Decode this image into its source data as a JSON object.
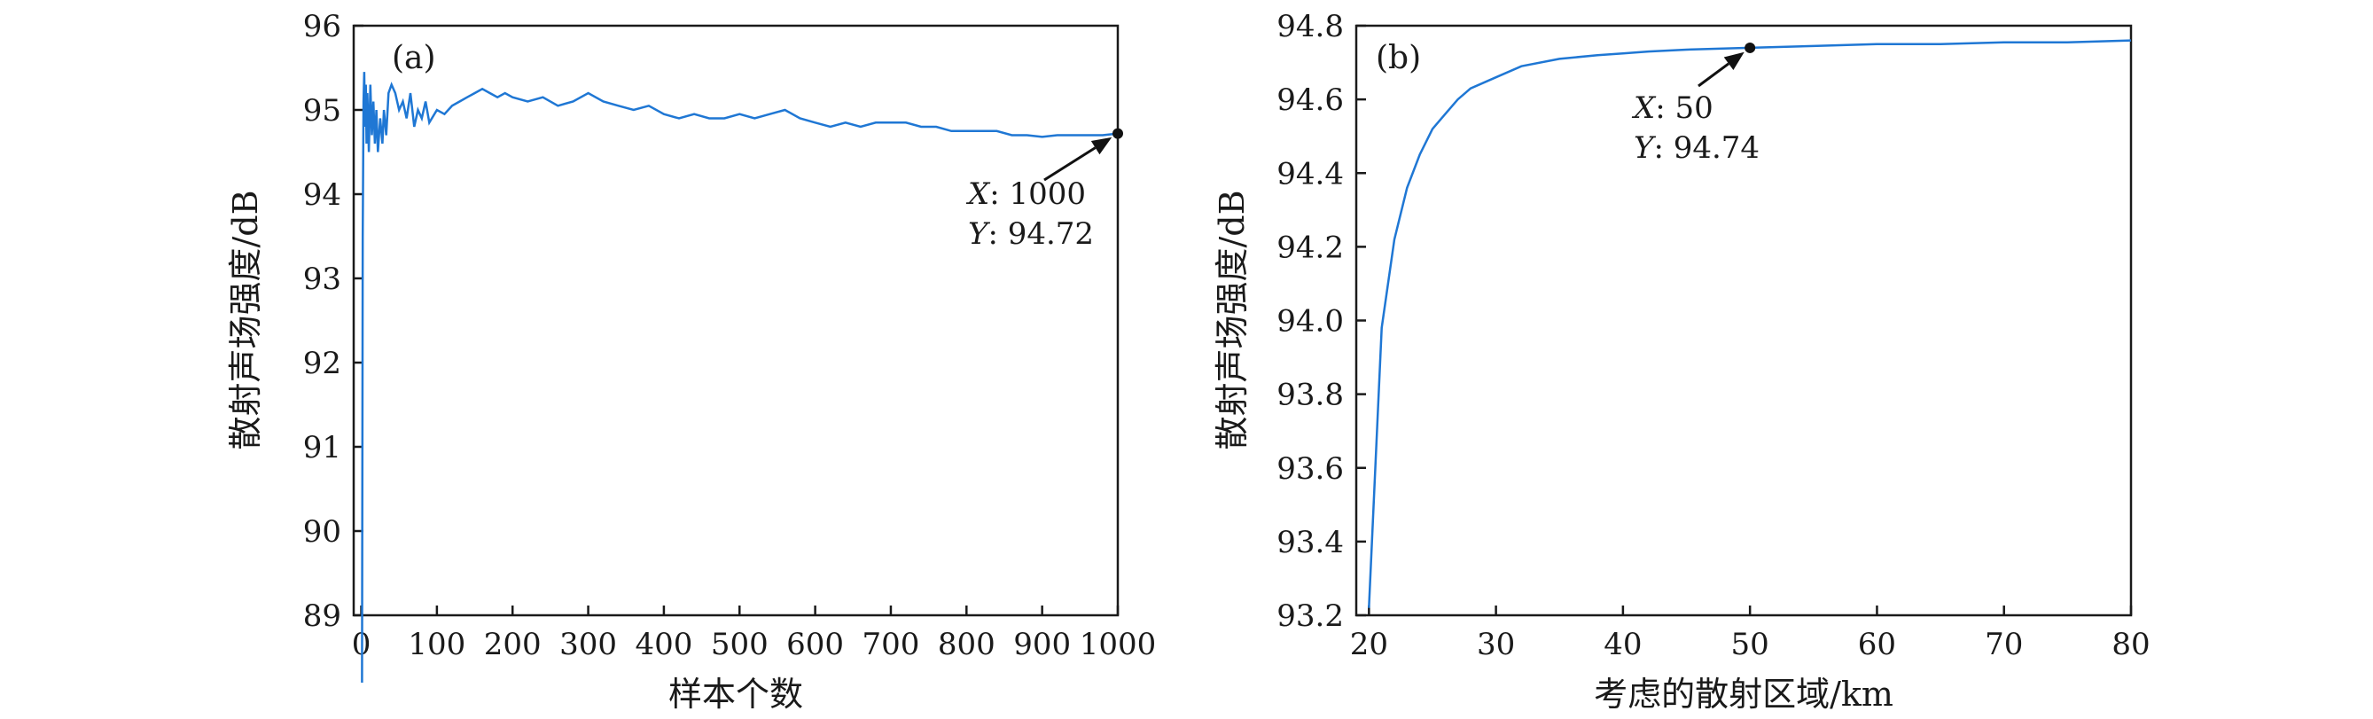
{
  "chart_data": [
    {
      "type": "line",
      "panel_label": "(a)",
      "xlabel": "样本个数",
      "ylabel": "散射声场强度/dB",
      "xlim": [
        -10,
        1000
      ],
      "ylim": [
        89,
        96
      ],
      "xticks": [
        "0",
        "100",
        "200",
        "300",
        "400",
        "500",
        "600",
        "700",
        "800",
        "900",
        "1000"
      ],
      "yticks": [
        "89",
        "90",
        "91",
        "92",
        "93",
        "94",
        "95",
        "96"
      ],
      "xtick_values": [
        0,
        100,
        200,
        300,
        400,
        500,
        600,
        700,
        800,
        900,
        1000
      ],
      "ytick_values": [
        89,
        90,
        91,
        92,
        93,
        94,
        95,
        96
      ],
      "color": "#1f77d4",
      "series": [
        {
          "x": [
            1,
            2,
            3,
            4,
            5,
            6,
            7,
            8,
            9,
            10,
            12,
            14,
            16,
            18,
            20,
            22,
            25,
            28,
            30,
            33,
            36,
            40,
            45,
            50,
            55,
            60,
            65,
            70,
            75,
            80,
            85,
            90,
            100,
            110,
            120,
            130,
            140,
            150,
            160,
            170,
            180,
            190,
            200,
            220,
            240,
            260,
            280,
            300,
            320,
            340,
            360,
            380,
            400,
            420,
            440,
            460,
            480,
            500,
            520,
            540,
            560,
            580,
            600,
            620,
            640,
            660,
            680,
            700,
            720,
            740,
            760,
            780,
            800,
            820,
            840,
            860,
            880,
            900,
            920,
            940,
            960,
            980,
            1000
          ],
          "y": [
            88.2,
            93.5,
            95.1,
            95.45,
            94.8,
            95.3,
            94.6,
            95.2,
            94.9,
            94.5,
            95.3,
            94.7,
            95.1,
            94.6,
            95.0,
            94.5,
            94.9,
            94.6,
            95.0,
            94.7,
            95.2,
            95.3,
            95.2,
            95.0,
            95.1,
            94.9,
            95.2,
            94.8,
            95.0,
            94.9,
            95.1,
            94.85,
            95.0,
            94.95,
            95.05,
            95.1,
            95.15,
            95.2,
            95.25,
            95.2,
            95.15,
            95.2,
            95.15,
            95.1,
            95.15,
            95.05,
            95.1,
            95.2,
            95.1,
            95.05,
            95.0,
            95.05,
            94.95,
            94.9,
            94.95,
            94.9,
            94.9,
            94.95,
            94.9,
            94.95,
            95.0,
            94.9,
            94.85,
            94.8,
            94.85,
            94.8,
            94.85,
            94.85,
            94.85,
            94.8,
            94.8,
            94.75,
            94.75,
            94.75,
            94.75,
            94.7,
            94.7,
            94.68,
            94.7,
            94.7,
            94.7,
            94.7,
            94.72
          ]
        }
      ],
      "annotation": {
        "point": [
          1000,
          94.72
        ],
        "x_name": "X",
        "x_text": ": 1000",
        "y_name": "Y",
        "y_text": ": 94.72"
      }
    },
    {
      "type": "line",
      "panel_label": "(b)",
      "xlabel": "考虑的散射区域/km",
      "ylabel": "散射声场强度/dB",
      "xlim": [
        19,
        80
      ],
      "ylim": [
        93.2,
        94.8
      ],
      "xticks": [
        "20",
        "30",
        "40",
        "50",
        "60",
        "70",
        "80"
      ],
      "yticks": [
        "93.2",
        "93.4",
        "93.6",
        "93.8",
        "94.0",
        "94.2",
        "94.4",
        "94.6",
        "94.8"
      ],
      "xtick_values": [
        20,
        30,
        40,
        50,
        60,
        70,
        80
      ],
      "ytick_values": [
        93.2,
        93.4,
        93.6,
        93.8,
        94.0,
        94.2,
        94.4,
        94.6,
        94.8
      ],
      "color": "#1f77d4",
      "series": [
        {
          "x": [
            20,
            21,
            22,
            23,
            24,
            25,
            26,
            27,
            28,
            30,
            32,
            35,
            38,
            40,
            42,
            45,
            50,
            55,
            60,
            65,
            70,
            75,
            80
          ],
          "y": [
            93.22,
            93.98,
            94.22,
            94.36,
            94.45,
            94.52,
            94.56,
            94.6,
            94.63,
            94.66,
            94.69,
            94.71,
            94.72,
            94.725,
            94.73,
            94.735,
            94.74,
            94.745,
            94.75,
            94.75,
            94.755,
            94.755,
            94.76
          ]
        }
      ],
      "annotation": {
        "point": [
          50,
          94.74
        ],
        "x_name": "X",
        "x_text": ": 50",
        "y_name": "Y",
        "y_text": ": 94.74"
      }
    }
  ]
}
